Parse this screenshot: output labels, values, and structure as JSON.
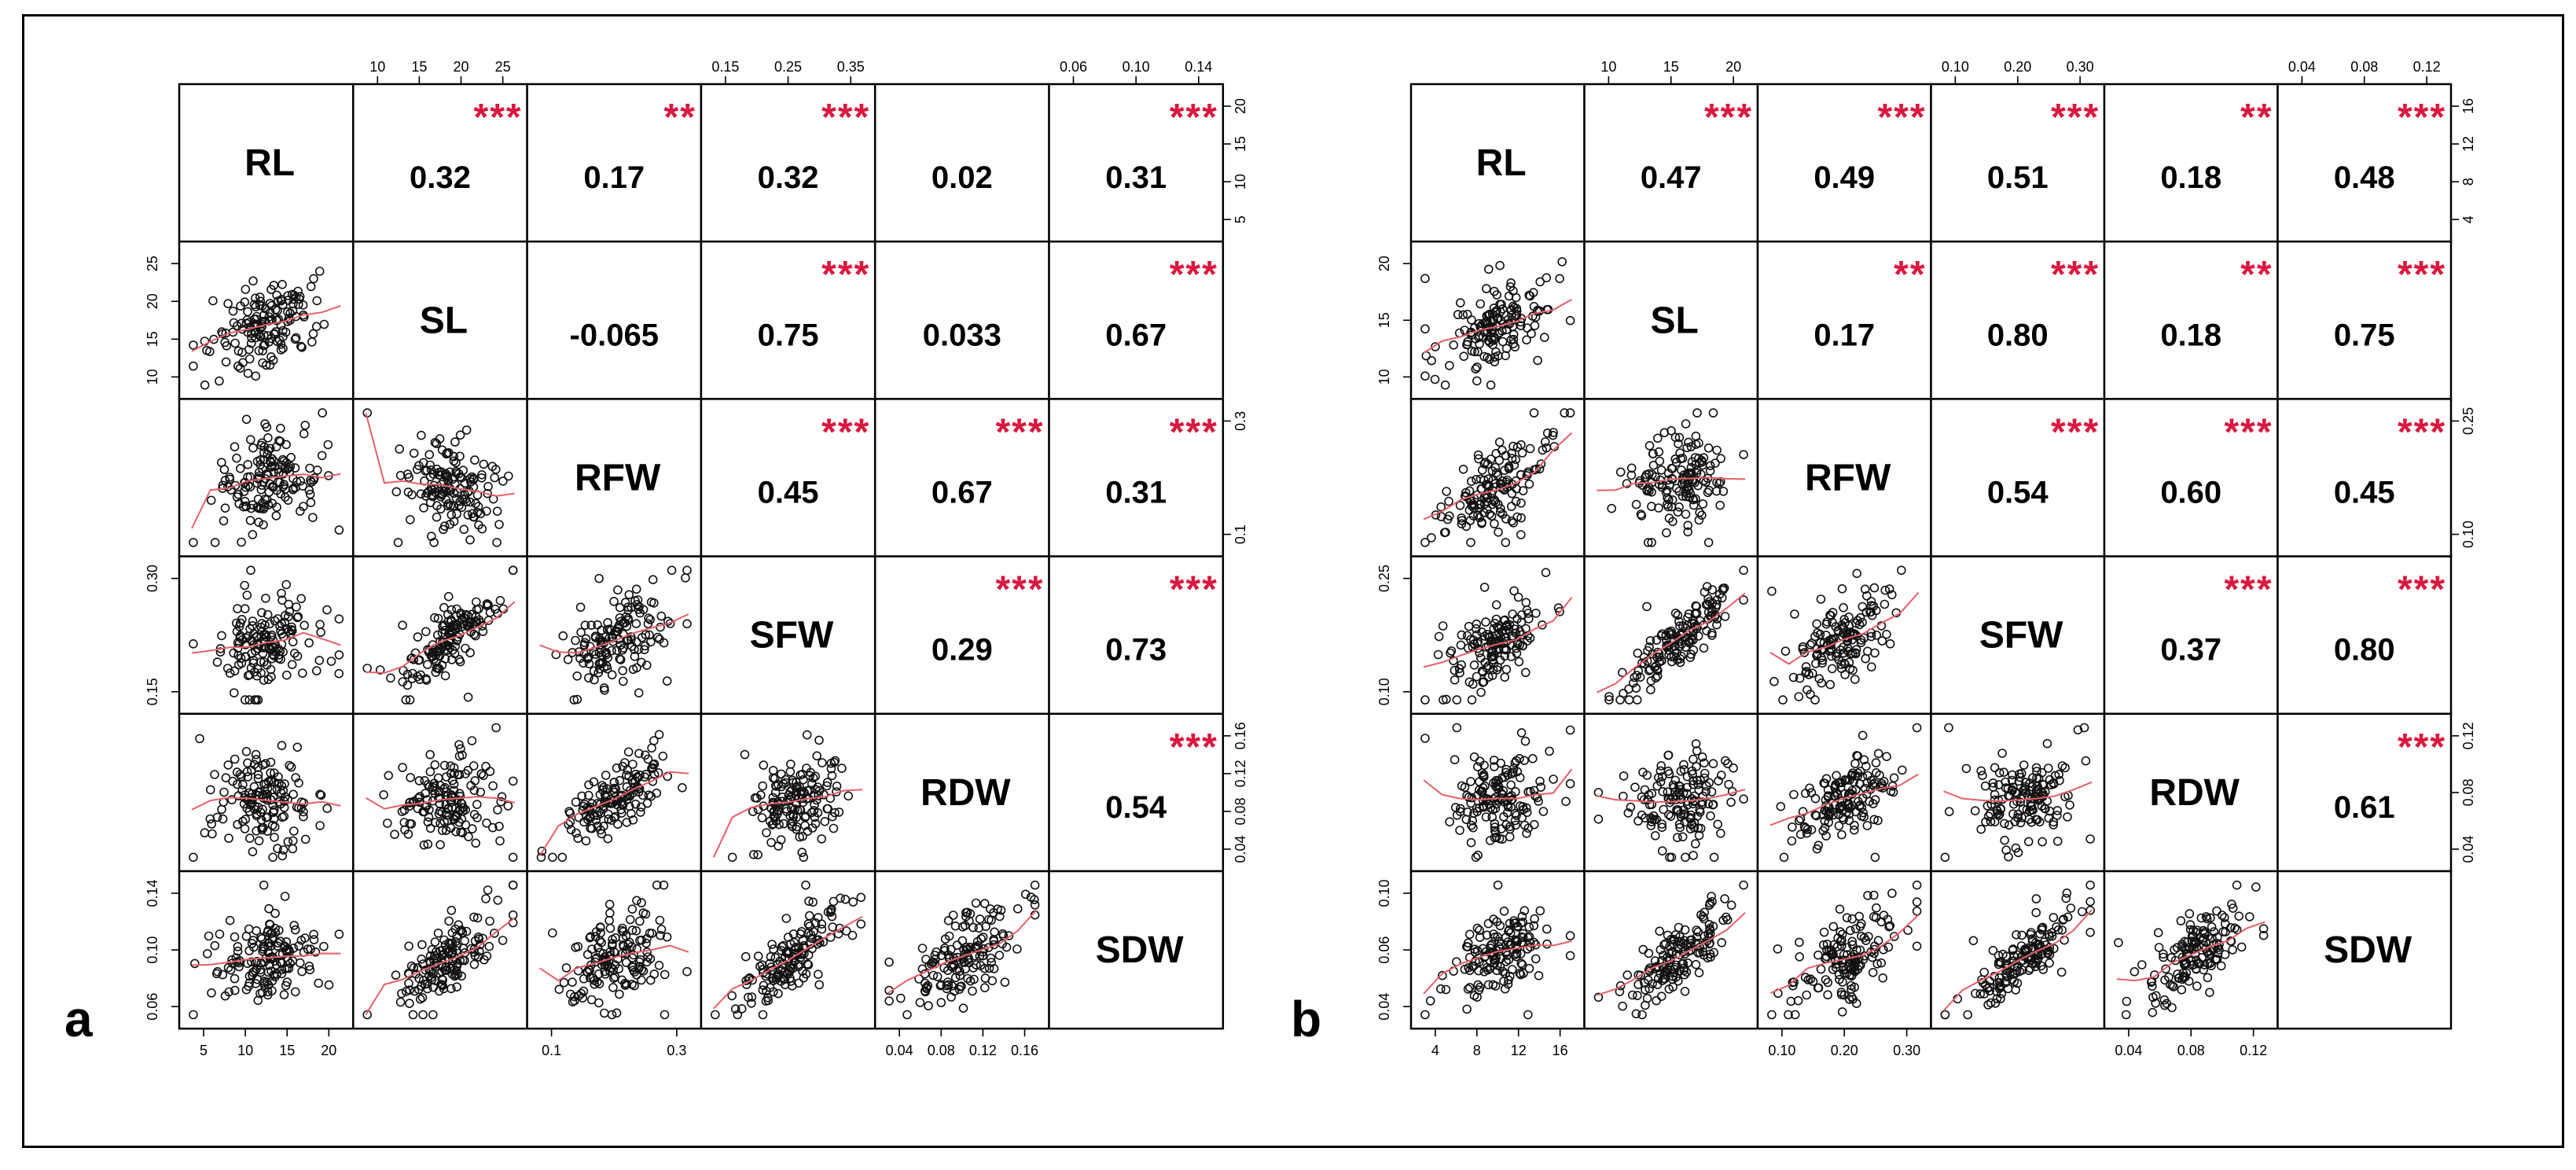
{
  "chart_data": [
    {
      "type": "scatter-matrix",
      "panel_label": "a",
      "variables": [
        "RL",
        "SL",
        "RFW",
        "SFW",
        "RDW",
        "SDW"
      ],
      "colors": {
        "points": "#111111",
        "smooth": "#e8606a",
        "stars": "#d9183f"
      },
      "correlations": [
        {
          "row": 0,
          "col": 1,
          "r": "0.32",
          "stars": "***"
        },
        {
          "row": 0,
          "col": 2,
          "r": "0.17",
          "stars": "**"
        },
        {
          "row": 0,
          "col": 3,
          "r": "0.32",
          "stars": "***"
        },
        {
          "row": 0,
          "col": 4,
          "r": "0.02",
          "stars": ""
        },
        {
          "row": 0,
          "col": 5,
          "r": "0.31",
          "stars": "***"
        },
        {
          "row": 1,
          "col": 2,
          "r": "-0.065",
          "stars": ""
        },
        {
          "row": 1,
          "col": 3,
          "r": "0.75",
          "stars": "***"
        },
        {
          "row": 1,
          "col": 4,
          "r": "0.033",
          "stars": ""
        },
        {
          "row": 1,
          "col": 5,
          "r": "0.67",
          "stars": "***"
        },
        {
          "row": 2,
          "col": 3,
          "r": "0.45",
          "stars": "***"
        },
        {
          "row": 2,
          "col": 4,
          "r": "0.67",
          "stars": "***"
        },
        {
          "row": 2,
          "col": 5,
          "r": "0.31",
          "stars": "***"
        },
        {
          "row": 3,
          "col": 4,
          "r": "0.29",
          "stars": "***"
        },
        {
          "row": 3,
          "col": 5,
          "r": "0.73",
          "stars": "***"
        },
        {
          "row": 4,
          "col": 5,
          "r": "0.54",
          "stars": "***"
        }
      ],
      "ticks": {
        "top": [
          {
            "col": 1,
            "labels": [
              "10",
              "15",
              "20",
              "25"
            ]
          },
          {
            "col": 3,
            "labels": [
              "0.15",
              "0.25",
              "0.35"
            ]
          },
          {
            "col": 5,
            "labels": [
              "0.06",
              "0.10",
              "0.14"
            ]
          }
        ],
        "bottom": [
          {
            "col": 0,
            "labels": [
              "5",
              "10",
              "15",
              "20"
            ]
          },
          {
            "col": 2,
            "labels": [
              "0.1",
              "0.3"
            ]
          },
          {
            "col": 4,
            "labels": [
              "0.04",
              "0.08",
              "0.12",
              "0.16"
            ]
          }
        ],
        "left": [
          {
            "row": 1,
            "labels": [
              "10",
              "15",
              "20",
              "25"
            ]
          },
          {
            "row": 3,
            "labels": [
              "0.15",
              "0.30"
            ]
          },
          {
            "row": 5,
            "labels": [
              "0.06",
              "0.10",
              "0.14"
            ]
          }
        ],
        "right": [
          {
            "row": 0,
            "labels": [
              "5",
              "10",
              "15",
              "20"
            ]
          },
          {
            "row": 2,
            "labels": [
              "0.1",
              "0.3"
            ]
          },
          {
            "row": 4,
            "labels": [
              "0.04",
              "0.08",
              "0.12",
              "0.16"
            ]
          }
        ]
      }
    },
    {
      "type": "scatter-matrix",
      "panel_label": "b",
      "variables": [
        "RL",
        "SL",
        "RFW",
        "SFW",
        "RDW",
        "SDW"
      ],
      "colors": {
        "points": "#111111",
        "smooth": "#e8606a",
        "stars": "#d9183f"
      },
      "correlations": [
        {
          "row": 0,
          "col": 1,
          "r": "0.47",
          "stars": "***"
        },
        {
          "row": 0,
          "col": 2,
          "r": "0.49",
          "stars": "***"
        },
        {
          "row": 0,
          "col": 3,
          "r": "0.51",
          "stars": "***"
        },
        {
          "row": 0,
          "col": 4,
          "r": "0.18",
          "stars": "**"
        },
        {
          "row": 0,
          "col": 5,
          "r": "0.48",
          "stars": "***"
        },
        {
          "row": 1,
          "col": 2,
          "r": "0.17",
          "stars": "**"
        },
        {
          "row": 1,
          "col": 3,
          "r": "0.80",
          "stars": "***"
        },
        {
          "row": 1,
          "col": 4,
          "r": "0.18",
          "stars": "**"
        },
        {
          "row": 1,
          "col": 5,
          "r": "0.75",
          "stars": "***"
        },
        {
          "row": 2,
          "col": 3,
          "r": "0.54",
          "stars": "***"
        },
        {
          "row": 2,
          "col": 4,
          "r": "0.60",
          "stars": "***"
        },
        {
          "row": 2,
          "col": 5,
          "r": "0.45",
          "stars": "***"
        },
        {
          "row": 3,
          "col": 4,
          "r": "0.37",
          "stars": "***"
        },
        {
          "row": 3,
          "col": 5,
          "r": "0.80",
          "stars": "***"
        },
        {
          "row": 4,
          "col": 5,
          "r": "0.61",
          "stars": "***"
        }
      ],
      "ticks": {
        "top": [
          {
            "col": 1,
            "labels": [
              "10",
              "15",
              "20"
            ]
          },
          {
            "col": 3,
            "labels": [
              "0.10",
              "0.20",
              "0.30"
            ]
          },
          {
            "col": 5,
            "labels": [
              "0.04",
              "0.08",
              "0.12"
            ]
          }
        ],
        "bottom": [
          {
            "col": 0,
            "labels": [
              "4",
              "8",
              "12",
              "16"
            ]
          },
          {
            "col": 2,
            "labels": [
              "0.10",
              "0.20",
              "0.30"
            ]
          },
          {
            "col": 4,
            "labels": [
              "0.04",
              "0.08",
              "0.12"
            ]
          }
        ],
        "left": [
          {
            "row": 1,
            "labels": [
              "10",
              "15",
              "20"
            ]
          },
          {
            "row": 3,
            "labels": [
              "0.10",
              "0.25"
            ]
          },
          {
            "row": 5,
            "labels": [
              "0.04",
              "0.06",
              "0.10"
            ]
          }
        ],
        "right": [
          {
            "row": 0,
            "labels": [
              "4",
              "8",
              "12",
              "16"
            ]
          },
          {
            "row": 2,
            "labels": [
              "0.10",
              "0.25"
            ]
          },
          {
            "row": 4,
            "labels": [
              "0.04",
              "0.08",
              "0.12"
            ]
          }
        ]
      }
    }
  ]
}
